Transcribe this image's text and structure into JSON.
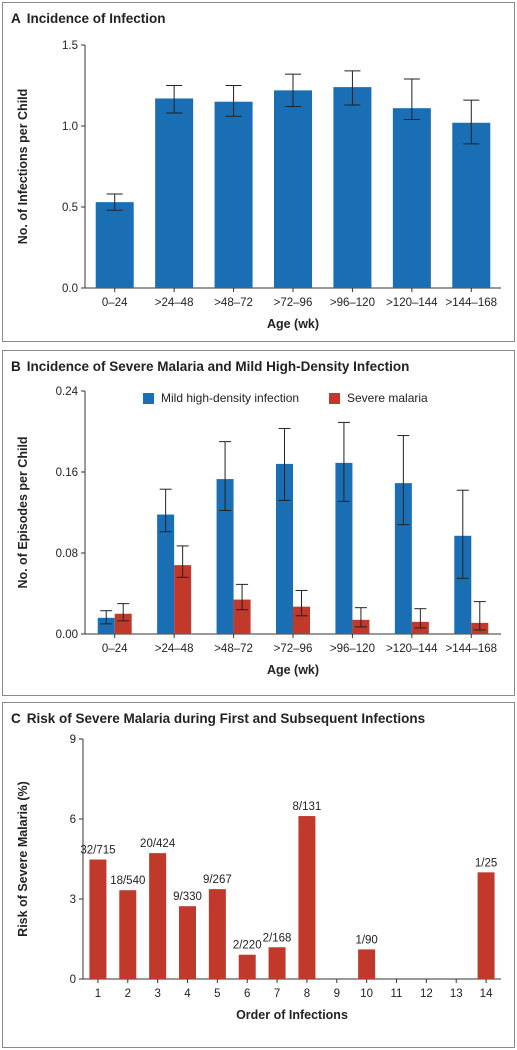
{
  "figure": {
    "panels": [
      {
        "letter": "A",
        "title": "Incidence of Infection"
      },
      {
        "letter": "B",
        "title": "Incidence of Severe Malaria and Mild High-Density Infection"
      },
      {
        "letter": "C",
        "title": "Risk of Severe Malaria during First and Subsequent Infections"
      }
    ]
  },
  "colors": {
    "blue": "#1a6fb4",
    "red": "#c0392b",
    "axis": "#333333",
    "errorbar": "#222222"
  },
  "chart_data": [
    {
      "type": "bar",
      "title": "Incidence of Infection",
      "xlabel": "Age (wk)",
      "ylabel": "No. of Infections per Child",
      "categories": [
        "0–24",
        ">24–48",
        ">48–72",
        ">72–96",
        ">96–120",
        ">120–144",
        ">144–168"
      ],
      "series": [
        {
          "values": [
            0.53,
            1.17,
            1.15,
            1.22,
            1.24,
            1.11,
            1.02
          ],
          "err_low": [
            0.48,
            1.08,
            1.06,
            1.12,
            1.13,
            1.04,
            0.89
          ],
          "err_high": [
            0.58,
            1.25,
            1.25,
            1.32,
            1.34,
            1.29,
            1.16
          ]
        }
      ],
      "ylim": [
        0,
        1.5
      ],
      "yticks": [
        0.0,
        0.5,
        1.0,
        1.5
      ],
      "ytick_labels": [
        "0.0",
        "0.5",
        "1.0",
        "1.5"
      ]
    },
    {
      "type": "bar",
      "title": "Incidence of Severe Malaria and Mild High-Density Infection",
      "xlabel": "Age (wk)",
      "ylabel": "No. of Episodes per Child",
      "categories": [
        "0–24",
        ">24–48",
        ">48–72",
        ">72–96",
        ">96–120",
        ">120–144",
        ">144–168"
      ],
      "series": [
        {
          "name": "Mild high-density infection",
          "values": [
            0.016,
            0.118,
            0.153,
            0.168,
            0.169,
            0.149,
            0.097
          ],
          "err_low": [
            0.01,
            0.101,
            0.122,
            0.132,
            0.131,
            0.108,
            0.055
          ],
          "err_high": [
            0.023,
            0.143,
            0.19,
            0.203,
            0.209,
            0.196,
            0.142
          ]
        },
        {
          "name": "Severe malaria",
          "values": [
            0.02,
            0.068,
            0.034,
            0.027,
            0.014,
            0.012,
            0.011
          ],
          "err_low": [
            0.013,
            0.056,
            0.024,
            0.018,
            0.007,
            0.006,
            0.004
          ],
          "err_high": [
            0.03,
            0.087,
            0.049,
            0.043,
            0.026,
            0.025,
            0.032
          ]
        }
      ],
      "ylim": [
        0,
        0.24
      ],
      "yticks": [
        0.0,
        0.08,
        0.16,
        0.24
      ],
      "ytick_labels": [
        "0.00",
        "0.08",
        "0.16",
        "0.24"
      ],
      "legend_position": "top"
    },
    {
      "type": "bar",
      "title": "Risk of Severe Malaria during First and Subsequent Infections",
      "xlabel": "Order of Infections",
      "ylabel": "Risk of Severe Malaria (%)",
      "categories": [
        "1",
        "2",
        "3",
        "4",
        "5",
        "6",
        "7",
        "8",
        "9",
        "10",
        "11",
        "12",
        "13",
        "14"
      ],
      "series": [
        {
          "values": [
            4.48,
            3.33,
            4.72,
            2.73,
            3.37,
            0.91,
            1.19,
            6.11,
            0,
            1.11,
            0,
            0,
            0,
            4.0
          ],
          "data_labels": [
            "32/715",
            "18/540",
            "20/424",
            "9/330",
            "9/267",
            "2/220",
            "2/168",
            "8/131",
            "",
            "1/90",
            "",
            "",
            "",
            "1/25"
          ]
        }
      ],
      "ylim": [
        0,
        9
      ],
      "yticks": [
        0,
        3,
        6,
        9
      ],
      "ytick_labels": [
        "0",
        "3",
        "6",
        "9"
      ]
    }
  ]
}
